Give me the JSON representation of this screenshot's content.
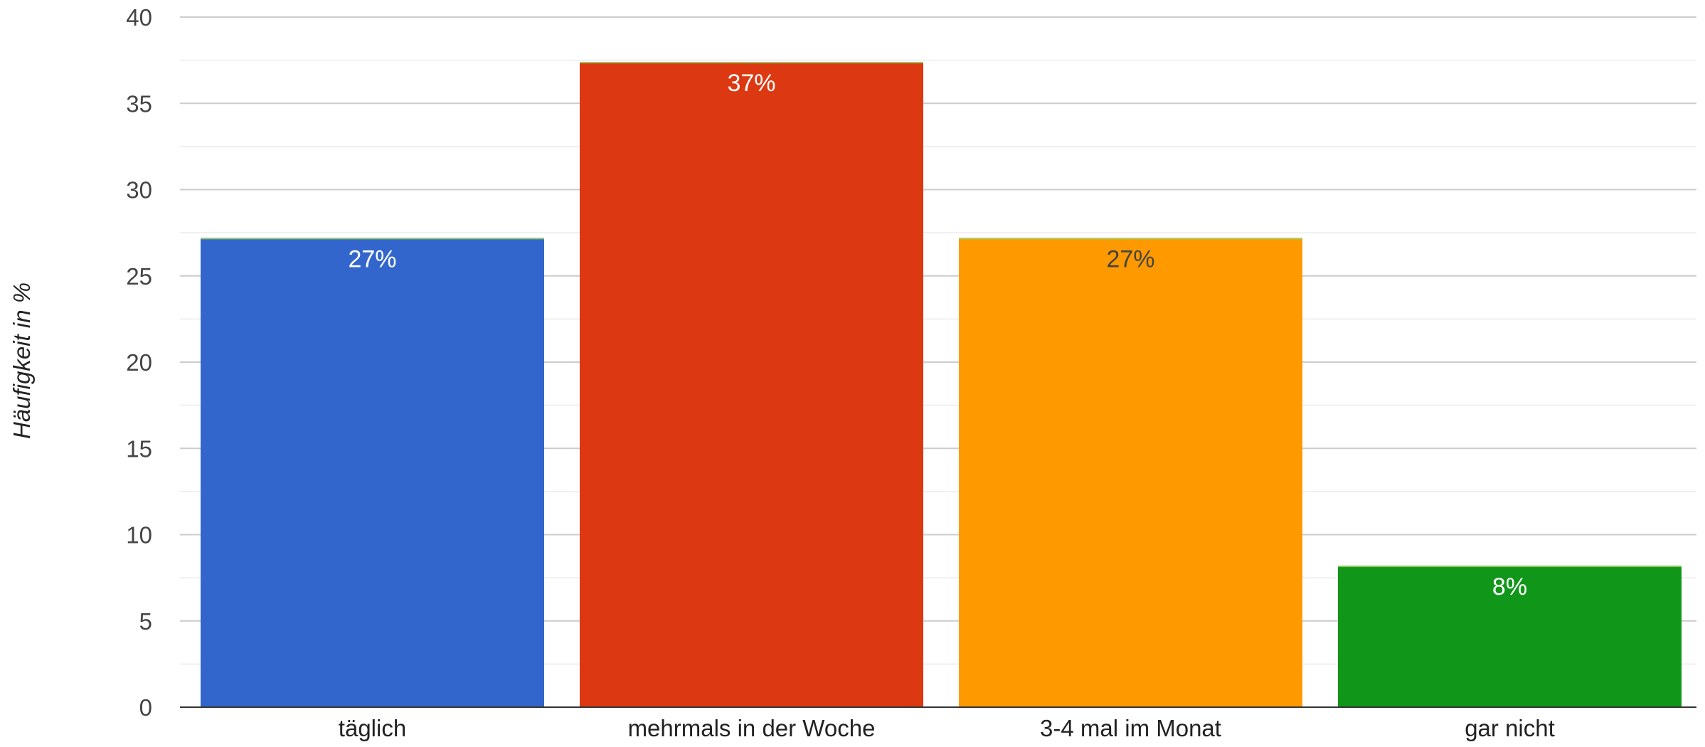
{
  "chart_data": {
    "type": "bar",
    "title": "",
    "xlabel": "",
    "ylabel": "Häufigkeit in %",
    "ylim": [
      0,
      40
    ],
    "yticks": [
      "0",
      "5",
      "10",
      "15",
      "20",
      "25",
      "30",
      "35",
      "40"
    ],
    "grid": true,
    "categories": [
      "täglich",
      "mehrmals in der Woche",
      "3-4 mal im Monat",
      "gar nicht"
    ],
    "values": [
      27.2,
      37.4,
      27.2,
      8.2
    ],
    "data_labels": [
      "27%",
      "37%",
      "27%",
      "8%"
    ],
    "colors": [
      "#3366cc",
      "#dc3912",
      "#ff9900",
      "#109618"
    ],
    "label_colors": [
      "#ffffff",
      "#ffffff",
      "#444444",
      "#ffffff"
    ]
  }
}
